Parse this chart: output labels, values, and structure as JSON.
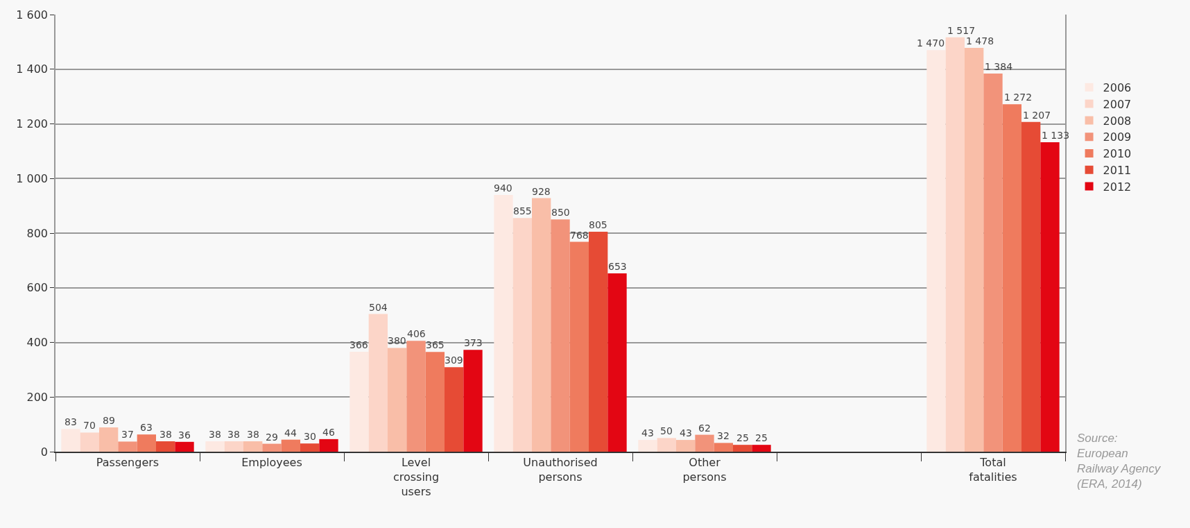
{
  "chart_data": {
    "type": "bar",
    "categories": [
      "Passengers",
      "Employees",
      "Level crossing users",
      "Unauthorised persons",
      "Other persons",
      null,
      "Total fatalities"
    ],
    "series": [
      {
        "name": "2006",
        "color": "#fde9e2",
        "values": [
          83,
          38,
          366,
          940,
          43,
          null,
          1470
        ],
        "value_labels": [
          "83",
          "38",
          "366",
          "940",
          "43",
          null,
          "1 470"
        ]
      },
      {
        "name": "2007",
        "color": "#fcd5c8",
        "values": [
          70,
          38,
          504,
          855,
          50,
          null,
          1517
        ],
        "value_labels": [
          "70",
          "38",
          "504",
          "855",
          "50",
          null,
          "1 517"
        ]
      },
      {
        "name": "2008",
        "color": "#f9bea8",
        "values": [
          89,
          38,
          380,
          928,
          43,
          null,
          1478
        ],
        "value_labels": [
          "89",
          "38",
          "380",
          "928",
          "43",
          null,
          "1 478"
        ]
      },
      {
        "name": "2009",
        "color": "#f2937a",
        "values": [
          37,
          29,
          406,
          850,
          62,
          null,
          1384
        ],
        "value_labels": [
          "37",
          "29",
          "406",
          "850",
          "62",
          null,
          "1 384"
        ]
      },
      {
        "name": "2010",
        "color": "#ef7b5e",
        "values": [
          63,
          44,
          365,
          768,
          32,
          null,
          1272
        ],
        "value_labels": [
          "63",
          "44",
          "365",
          "768",
          "32",
          null,
          "1 272"
        ]
      },
      {
        "name": "2011",
        "color": "#e64b35",
        "values": [
          38,
          30,
          309,
          805,
          25,
          null,
          1207
        ],
        "value_labels": [
          "38",
          "30",
          "309",
          "805",
          "25",
          null,
          "1 207"
        ]
      },
      {
        "name": "2012",
        "color": "#e30613",
        "values": [
          36,
          46,
          373,
          653,
          25,
          null,
          1133
        ],
        "value_labels": [
          "36",
          "46",
          "373",
          "653",
          "25",
          null,
          "1 133"
        ]
      }
    ],
    "ylim": [
      0,
      1600
    ],
    "yticks": [
      0,
      200,
      400,
      600,
      800,
      {
        "value": 1000,
        "label": "1 000"
      },
      {
        "value": 1200,
        "label": "1 200"
      },
      {
        "value": 1400,
        "label": "1 400"
      },
      {
        "value": 1600,
        "label": "1 600"
      }
    ],
    "grid": "y",
    "legend": "right",
    "annotations": [
      "Source: European Railway Agency (ERA, 2014)"
    ]
  }
}
